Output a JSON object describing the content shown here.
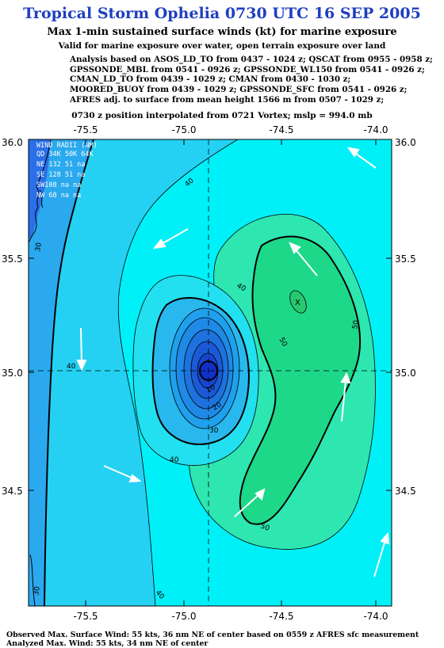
{
  "header": {
    "title": "Tropical Storm Ophelia 0730 UTC 16 SEP 2005",
    "subtitle": "Max 1-min sustained surface winds (kt) for marine exposure",
    "valid_note": "Valid for marine exposure over water, open terrain exposure over land",
    "analysis_lines": [
      "Analysis based on  ASOS_LD_TO from 0437 - 1024 z;  QSCAT from 0955 - 0958 z;",
      "GPSSONDE_MBL from 0541 - 0926 z;  GPSSONDE_WL150 from 0541 - 0926 z;",
      "CMAN_LD_TO from 0439 - 1029 z;  CMAN from 0430 - 1030 z;",
      "MOORED_BUOY from 0439 - 1029 z;  GPSSONDE_SFC from 0541 - 0926 z;",
      "AFRES adj. to surface from mean height 1566 m from 0507 - 1029 z;"
    ],
    "position_note": "0730 z position interpolated from 0721 Vortex; mslp = 994.0 mb"
  },
  "map": {
    "lon_ticks": [
      "-75.5",
      "-75.0",
      "-74.5",
      "-74.0"
    ],
    "lat_ticks": [
      "36.0",
      "35.5",
      "35.0",
      "34.5"
    ],
    "contour_labels": [
      "30",
      "40",
      "40",
      "40",
      "50",
      "50",
      "50",
      "40",
      "30",
      "20",
      "10",
      "30",
      "40",
      "30"
    ],
    "colors": {
      "deep": "#2a6fe8",
      "mid": "#2aa9ee",
      "light": "#24d1f2",
      "cyan": "#00f0f8",
      "green": "#1ed88a",
      "green_light": "#2ee6b0",
      "center_blue": "#1030c8"
    },
    "wind_radii": {
      "header1": "WIND RADII (NM)",
      "header2": "QD 34K 50K 64K",
      "rows": [
        "NE 132  51  na",
        "SE 128  51  na",
        "SW108  na  na",
        "NW 68  na  na"
      ]
    },
    "max_marker": "X"
  },
  "footer": {
    "lines": [
      "Observed Max. Surface Wind: 55 kts, 36 nm NE of center based on 0559 z AFRES sfc measurement",
      "Analyzed Max. Wind: 55 kts, 34 nm NE of center"
    ]
  }
}
